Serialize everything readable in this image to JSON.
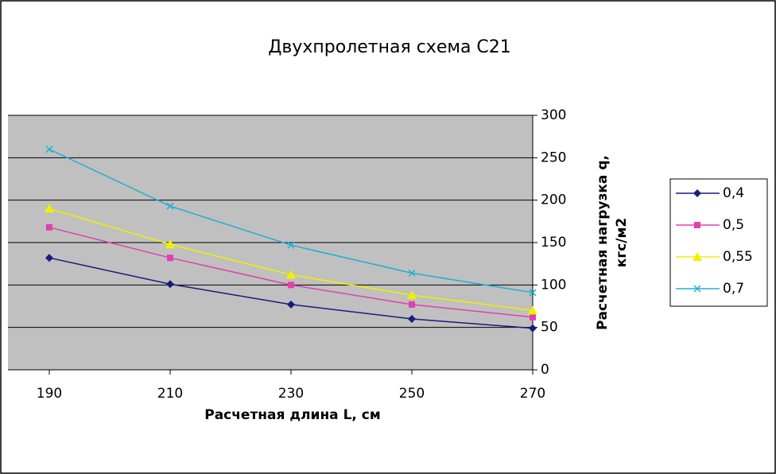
{
  "chart_data": {
    "type": "line",
    "title": "Двухпролетная схема С21",
    "x_label": "Расчетная длина L, см",
    "y_label": [
      "Расчетная нагрузка q,",
      "кгс/м2"
    ],
    "x": [
      190,
      210,
      230,
      250,
      270
    ],
    "xlim": [
      190,
      270
    ],
    "xticks": [
      190,
      210,
      230,
      250,
      270
    ],
    "ylim": [
      0,
      300
    ],
    "yticks": [
      0,
      50,
      100,
      150,
      200,
      250,
      300
    ],
    "grid": true,
    "legend": "right",
    "series": [
      {
        "name": "0,4",
        "color": "#1a1a80",
        "marker": "diamond",
        "values": [
          132,
          101,
          77,
          60,
          49
        ]
      },
      {
        "name": "0,5",
        "color": "#e040b0",
        "marker": "square",
        "values": [
          168,
          132,
          100,
          77,
          62
        ]
      },
      {
        "name": "0,55",
        "color": "#f0f000",
        "marker": "triangle",
        "values": [
          190,
          148,
          112,
          88,
          70
        ]
      },
      {
        "name": "0,7",
        "color": "#20b0d0",
        "marker": "x",
        "values": [
          260,
          193,
          147,
          114,
          91
        ]
      }
    ]
  }
}
